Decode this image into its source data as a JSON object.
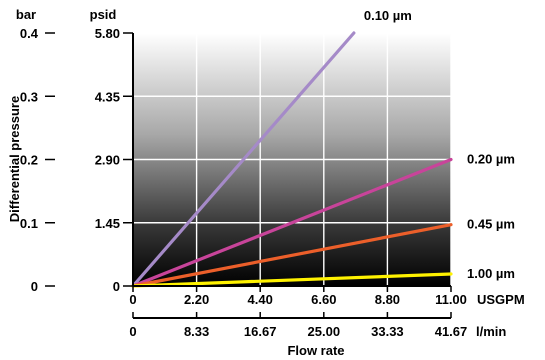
{
  "chart_data": {
    "type": "line",
    "ylabel": "Differential pressure",
    "xlabel": "Flow rate",
    "y_axes": [
      {
        "unit": "bar",
        "ticks": [
          "0",
          "0.1",
          "0.2",
          "0.3",
          "0.4"
        ],
        "ylim": [
          0,
          0.4
        ]
      },
      {
        "unit": "psid",
        "ticks": [
          "0",
          "1.45",
          "2.90",
          "4.35",
          "5.80"
        ],
        "ylim": [
          0,
          5.8
        ]
      }
    ],
    "x_axes": [
      {
        "unit": "USGPM",
        "ticks": [
          "0",
          "2.20",
          "4.40",
          "6.60",
          "8.80",
          "11.00"
        ],
        "xlim": [
          0,
          11
        ]
      },
      {
        "unit": "l/min",
        "ticks": [
          "0",
          "8.33",
          "16.67",
          "25.00",
          "33.33",
          "41.67"
        ],
        "xlim": [
          0,
          41.67
        ]
      }
    ],
    "grid": true,
    "series": [
      {
        "name": "0.10 µm",
        "color": "#a58ac8",
        "x": [
          0,
          7.64
        ],
        "y": [
          0,
          0.4
        ]
      },
      {
        "name": "0.20 µm",
        "color": "#c8449a",
        "x": [
          0,
          11
        ],
        "y": [
          0,
          0.2
        ]
      },
      {
        "name": "0.45 µm",
        "color": "#ec5f2a",
        "x": [
          0,
          11
        ],
        "y": [
          0,
          0.097
        ]
      },
      {
        "name": "1.00 µm",
        "color": "#fff200",
        "x": [
          0,
          11
        ],
        "y": [
          0,
          0.019
        ]
      }
    ]
  }
}
